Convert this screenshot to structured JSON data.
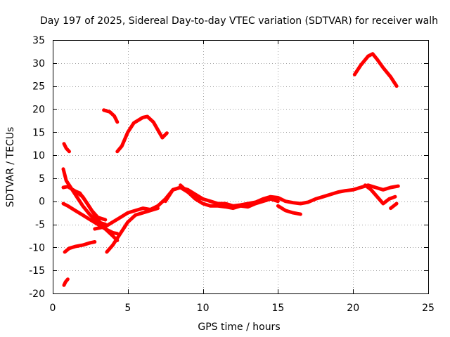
{
  "chart_data": {
    "type": "line",
    "title": "Day 197 of 2025, Sidereal Day-to-day VTEC variation (SDTVAR) for receiver walh",
    "xlabel": "GPS time / hours",
    "ylabel": "SDTVAR / TECUs",
    "xlim": [
      0,
      25
    ],
    "ylim": [
      -20,
      35
    ],
    "xticks": [
      0,
      5,
      10,
      15,
      20,
      25
    ],
    "yticks": [
      -20,
      -15,
      -10,
      -5,
      0,
      5,
      10,
      15,
      20,
      25,
      30,
      35
    ],
    "grid": true,
    "color": "#ff0000",
    "series": [
      {
        "name": "s1",
        "x": [
          0.75,
          0.9,
          1.1
        ],
        "y": [
          12.5,
          11.5,
          10.8
        ]
      },
      {
        "name": "s2",
        "x": [
          0.75,
          0.85,
          1.0
        ],
        "y": [
          -18.2,
          -17.5,
          -16.9
        ]
      },
      {
        "name": "s3",
        "x": [
          3.4,
          3.8,
          4.1,
          4.3
        ],
        "y": [
          19.8,
          19.4,
          18.5,
          17.2
        ]
      },
      {
        "name": "s4",
        "x": [
          4.3,
          4.6,
          5.0,
          5.4,
          6.0,
          6.3,
          6.7,
          7.0,
          7.3,
          7.6
        ],
        "y": [
          10.8,
          12.0,
          15.0,
          17.0,
          18.2,
          18.4,
          17.2,
          15.5,
          13.8,
          14.8
        ]
      },
      {
        "name": "s5",
        "x": [
          20.1,
          20.5,
          21.0,
          21.3,
          21.6,
          22.0,
          22.5,
          22.9
        ],
        "y": [
          27.5,
          29.5,
          31.5,
          32.0,
          30.8,
          29.0,
          27.0,
          25.0
        ]
      },
      {
        "name": "s6",
        "x": [
          0.8,
          1.1,
          1.5,
          2.0,
          2.5,
          2.8
        ],
        "y": [
          -11.0,
          -10.2,
          -9.8,
          -9.5,
          -9.0,
          -8.8
        ]
      },
      {
        "name": "s7",
        "x": [
          0.7,
          0.9,
          1.2,
          1.5,
          2.0,
          2.5,
          3.0,
          3.5
        ],
        "y": [
          7.0,
          4.5,
          3.0,
          1.5,
          -1.0,
          -3.0,
          -4.5,
          -5.0
        ]
      },
      {
        "name": "s8",
        "x": [
          0.7,
          1.0,
          1.5,
          2.0,
          2.5,
          3.0,
          3.5,
          4.0,
          4.3
        ],
        "y": [
          3.0,
          3.2,
          2.2,
          1.0,
          -1.5,
          -4.0,
          -6.0,
          -7.5,
          -8.5
        ]
      },
      {
        "name": "s9",
        "x": [
          1.5,
          1.8,
          2.2,
          2.6,
          3.0,
          3.5
        ],
        "y": [
          2.2,
          1.8,
          0.0,
          -2.0,
          -3.5,
          -4.0
        ]
      },
      {
        "name": "s10",
        "x": [
          0.7,
          1.0,
          1.5,
          2.0,
          2.5,
          3.0,
          3.5,
          4.0,
          4.3
        ],
        "y": [
          -0.5,
          -1.0,
          -2.0,
          -3.0,
          -4.0,
          -5.0,
          -6.0,
          -6.8,
          -7.0
        ]
      },
      {
        "name": "s11",
        "x": [
          3.6,
          4.0,
          4.5,
          5.0,
          5.5,
          6.0,
          6.5,
          7.0
        ],
        "y": [
          -11.0,
          -9.5,
          -7.0,
          -4.5,
          -3.0,
          -2.5,
          -2.0,
          -1.5
        ]
      },
      {
        "name": "s12",
        "x": [
          2.8,
          3.5,
          4.0,
          4.5,
          5.0,
          5.5,
          6.0,
          6.5,
          7.0,
          7.5,
          8.0,
          8.5,
          9.0,
          9.5,
          10.0
        ],
        "y": [
          -6.0,
          -5.5,
          -4.5,
          -3.5,
          -2.5,
          -2.0,
          -1.5,
          -1.8,
          -1.0,
          0.5,
          2.5,
          3.0,
          2.0,
          1.0,
          0.5
        ]
      },
      {
        "name": "s13",
        "x": [
          7.5,
          8.0,
          8.5,
          9.0,
          9.5,
          10.0,
          10.5,
          11.0,
          11.5,
          12.0,
          12.5,
          13.0,
          13.5,
          14.0,
          14.5,
          15.0,
          15.5,
          16.0,
          16.5,
          17.0,
          17.5,
          18.0,
          18.5,
          19.0,
          19.5,
          20.0,
          20.5,
          21.0,
          21.5,
          22.0,
          22.5,
          23.0
        ],
        "y": [
          0.0,
          2.5,
          3.0,
          2.5,
          1.5,
          0.5,
          0.0,
          -0.5,
          -0.5,
          -1.0,
          -0.8,
          -0.5,
          -0.2,
          0.5,
          1.0,
          0.8,
          0.0,
          -0.3,
          -0.5,
          -0.2,
          0.5,
          1.0,
          1.5,
          2.0,
          2.3,
          2.5,
          3.0,
          3.5,
          3.0,
          2.5,
          3.0,
          3.3
        ]
      },
      {
        "name": "s14",
        "x": [
          8.5,
          9.0,
          9.5,
          10.0,
          10.5,
          11.0,
          11.5,
          12.0,
          12.5,
          13.0,
          13.5,
          14.0,
          14.5,
          15.0
        ],
        "y": [
          3.5,
          2.0,
          0.5,
          -0.5,
          -1.0,
          -1.0,
          -1.2,
          -1.5,
          -1.0,
          -1.2,
          -0.5,
          0.0,
          0.5,
          0.0
        ]
      },
      {
        "name": "s15",
        "x": [
          15.0,
          15.5,
          16.0,
          16.5
        ],
        "y": [
          -1.0,
          -2.0,
          -2.5,
          -2.8
        ]
      },
      {
        "name": "s16",
        "x": [
          20.8,
          21.2,
          21.6,
          22.0,
          22.4,
          22.8
        ],
        "y": [
          3.5,
          2.5,
          1.0,
          -0.5,
          0.5,
          1.0
        ]
      },
      {
        "name": "s17",
        "x": [
          22.5,
          22.7,
          22.9
        ],
        "y": [
          -1.5,
          -1.0,
          -0.5
        ]
      }
    ]
  }
}
